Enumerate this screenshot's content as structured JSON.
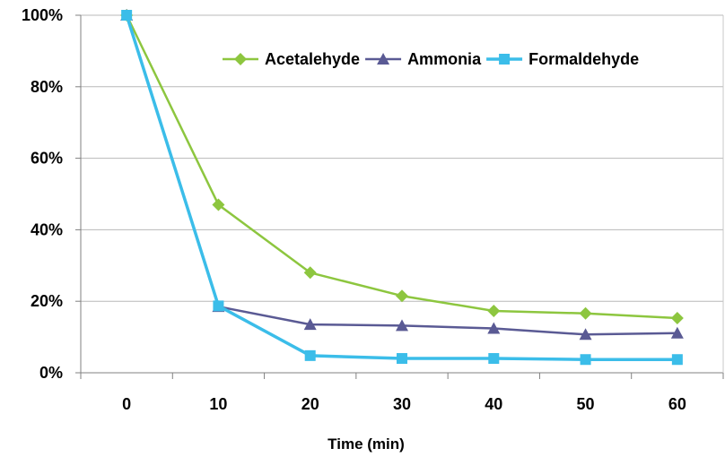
{
  "chart_data": {
    "type": "line",
    "title": "",
    "xlabel": "Time (min)",
    "ylabel": "",
    "x": [
      0,
      10,
      20,
      30,
      40,
      50,
      60
    ],
    "x_tick_labels": [
      "0",
      "10",
      "20",
      "30",
      "40",
      "50",
      "60"
    ],
    "ylim": [
      0,
      100
    ],
    "y_tick_labels": [
      "0%",
      "20%",
      "40%",
      "60%",
      "80%",
      "100%"
    ],
    "grid": true,
    "legend_position": "top-right",
    "series": [
      {
        "name": "Acetalehyde",
        "color": "#8dc63f",
        "marker": "diamond",
        "values": [
          100,
          47,
          28,
          21.5,
          17.3,
          16.6,
          15.3
        ]
      },
      {
        "name": "Ammonia",
        "color": "#5a5a94",
        "marker": "triangle",
        "values": [
          100,
          18.5,
          13.5,
          13.2,
          12.4,
          10.7,
          11.1
        ]
      },
      {
        "name": "Formaldehyde",
        "color": "#3bbde9",
        "marker": "square",
        "values": [
          100,
          18.7,
          4.8,
          4.0,
          4.0,
          3.7,
          3.7
        ]
      }
    ]
  }
}
